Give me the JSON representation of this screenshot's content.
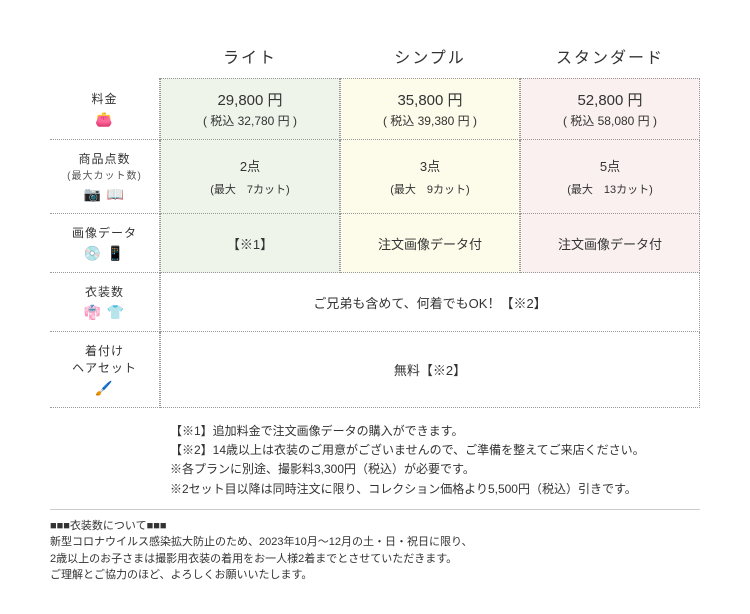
{
  "plans": {
    "light": {
      "name": "ライト",
      "bg": "#eef4ea"
    },
    "simple": {
      "name": "シンプル",
      "bg": "#fdfbea"
    },
    "standard": {
      "name": "スタンダード",
      "bg": "#faf0f0"
    }
  },
  "rows": {
    "price": {
      "label": "料金",
      "icons": "👛",
      "light": {
        "main": "29,800 円",
        "tax": "( 税込 32,780 円 )"
      },
      "simple": {
        "main": "35,800 円",
        "tax": "( 税込 39,380 円 )"
      },
      "standard": {
        "main": "52,800 円",
        "tax": "( 税込 58,080 円 )"
      }
    },
    "items": {
      "label": "商品点数",
      "sub": "(最大カット数)",
      "icons": "📷 📖",
      "light": {
        "main": "2点",
        "detail": "(最大　7カット)"
      },
      "simple": {
        "main": "3点",
        "detail": "(最大　9カット)"
      },
      "standard": {
        "main": "5点",
        "detail": "(最大　13カット)"
      }
    },
    "imagedata": {
      "label": "画像データ",
      "icons": "💿 📱",
      "light": "【※1】",
      "simple": "注文画像データ付",
      "standard": "注文画像データ付"
    },
    "costume": {
      "label": "衣装数",
      "icons": "👘 👕",
      "text": "ご兄弟も含めて、何着でもOK！【※2】"
    },
    "dressing": {
      "label": "着付け\nヘアセット",
      "icons": "🖌️",
      "text": "無料【※2】"
    }
  },
  "notes": [
    "【※1】追加料金で注文画像データの購入ができます。",
    "【※2】14歳以上は衣装のご用意がございませんので、ご準備を整えてご来店ください。",
    "※各プランに別途、撮影料3,300円（税込）が必要です。",
    "※2セット目以降は同時注文に限り、コレクション価格より5,500円（税込）引きです。"
  ],
  "footer": {
    "title": "■■■衣装数について■■■",
    "lines": [
      "新型コロナウイルス感染拡大防止のため、2023年10月～12月の土・日・祝日に限り、",
      "2歳以上のお子さまは撮影用衣装の着用をお一人様2着までとさせていただきます。",
      "ご理解とご協力のほど、よろしくお願いいたします。"
    ]
  }
}
